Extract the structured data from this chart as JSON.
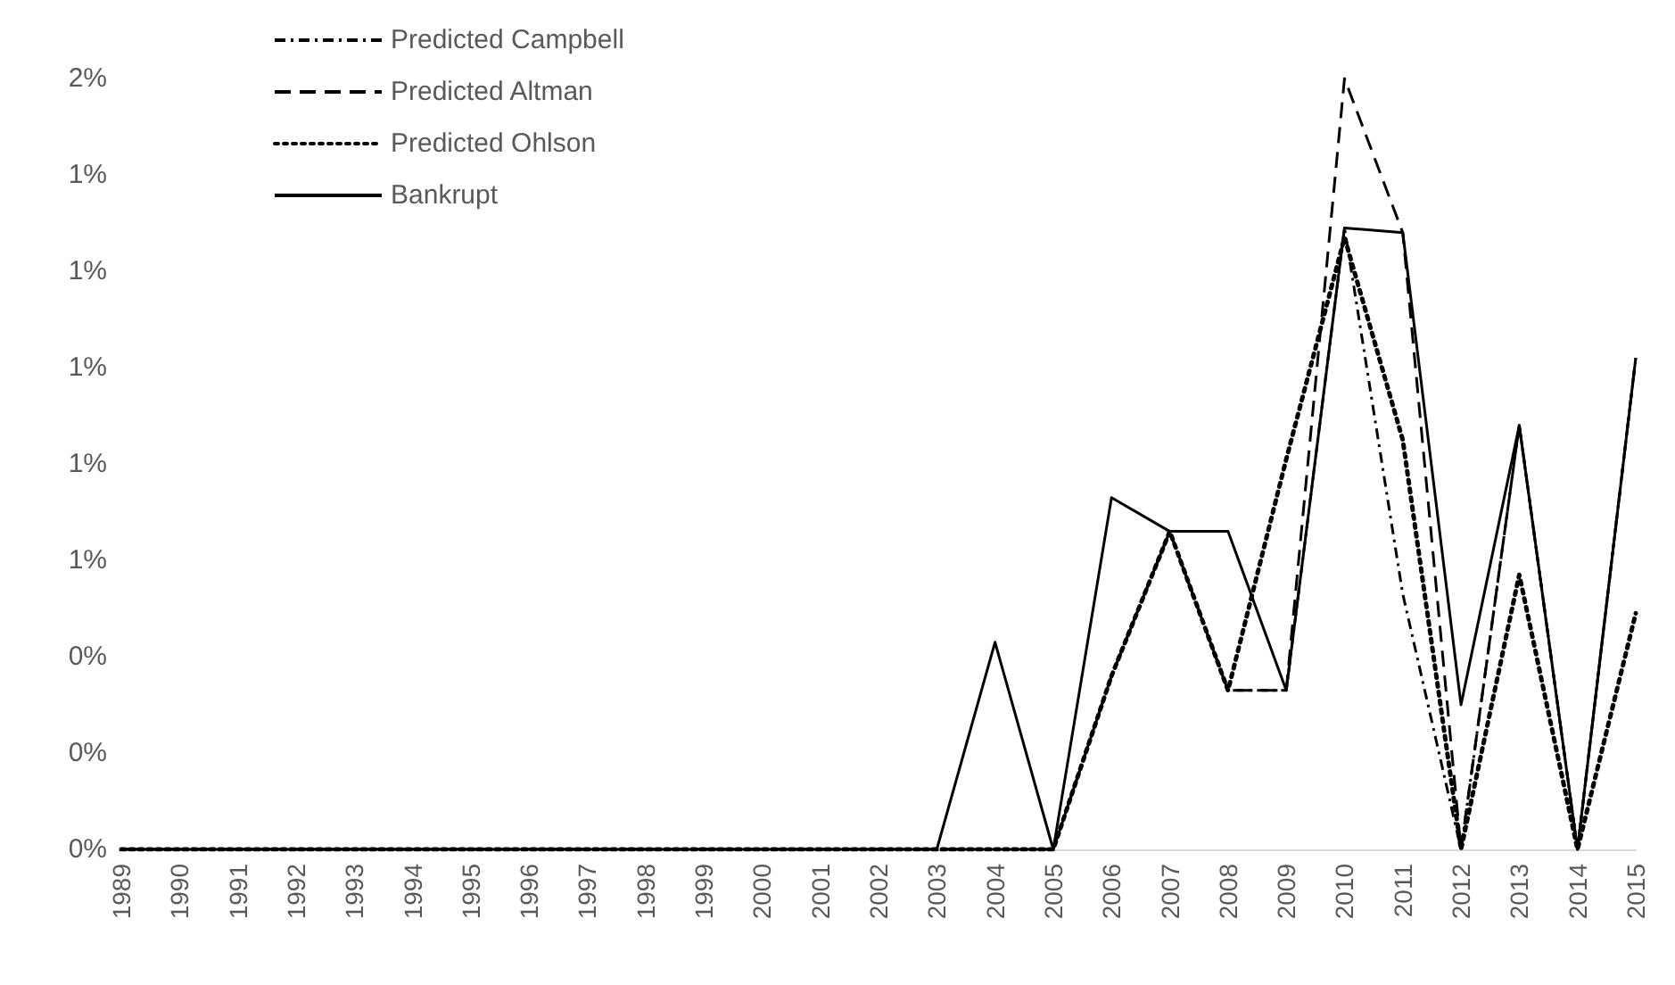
{
  "chart_data": {
    "type": "line",
    "categories": [
      "1989",
      "1990",
      "1991",
      "1992",
      "1993",
      "1994",
      "1995",
      "1996",
      "1997",
      "1998",
      "1999",
      "2000",
      "2001",
      "2002",
      "2003",
      "2004",
      "2005",
      "2006",
      "2007",
      "2008",
      "2009",
      "2010",
      "2011",
      "2012",
      "2013",
      "2014",
      "2015"
    ],
    "series": [
      {
        "name": "Predicted Campbell",
        "color": "#000000",
        "line_style": "dashdot",
        "values": [
          0,
          0,
          0,
          0,
          0,
          0,
          0,
          0,
          0,
          0,
          0,
          0,
          0,
          0,
          0,
          0,
          0,
          0.36,
          0.66,
          0.33,
          0.33,
          1.29,
          0.53,
          0,
          0.88,
          0,
          1.02
        ]
      },
      {
        "name": "Predicted Altman",
        "color": "#000000",
        "line_style": "dashed",
        "values": [
          0,
          0,
          0,
          0,
          0,
          0,
          0,
          0,
          0,
          0,
          0,
          0,
          0,
          0,
          0,
          0,
          0,
          0.36,
          0.66,
          0.33,
          0.33,
          1.6,
          1.28,
          0,
          0.88,
          0,
          1.02
        ]
      },
      {
        "name": "Predicted Ohlson",
        "color": "#000000",
        "line_style": "dotted",
        "values": [
          0,
          0,
          0,
          0,
          0,
          0,
          0,
          0,
          0,
          0,
          0,
          0,
          0,
          0,
          0,
          0,
          0,
          0.36,
          0.66,
          0.33,
          0.81,
          1.27,
          0.85,
          0,
          0.57,
          0,
          0.49
        ]
      },
      {
        "name": "Bankrupt",
        "color": "#000000",
        "line_style": "solid",
        "values": [
          0,
          0,
          0,
          0,
          0,
          0,
          0,
          0,
          0,
          0,
          0,
          0,
          0,
          0,
          0,
          0.43,
          0,
          0.73,
          0.66,
          0.66,
          0.33,
          1.29,
          1.28,
          0.3,
          0.88,
          0,
          1.02
        ]
      }
    ],
    "ylim": [
      0,
      1.6
    ],
    "yticks": [
      {
        "value": 0,
        "label": "0%"
      },
      {
        "value": 0.2,
        "label": "0%"
      },
      {
        "value": 0.4,
        "label": "0%"
      },
      {
        "value": 0.6,
        "label": "1%"
      },
      {
        "value": 0.8,
        "label": "1%"
      },
      {
        "value": 1.0,
        "label": "1%"
      },
      {
        "value": 1.2,
        "label": "1%"
      },
      {
        "value": 1.4,
        "label": "1%"
      },
      {
        "value": 1.6,
        "label": "2%"
      }
    ],
    "grid": false,
    "legend": "top left",
    "marker": "none"
  }
}
